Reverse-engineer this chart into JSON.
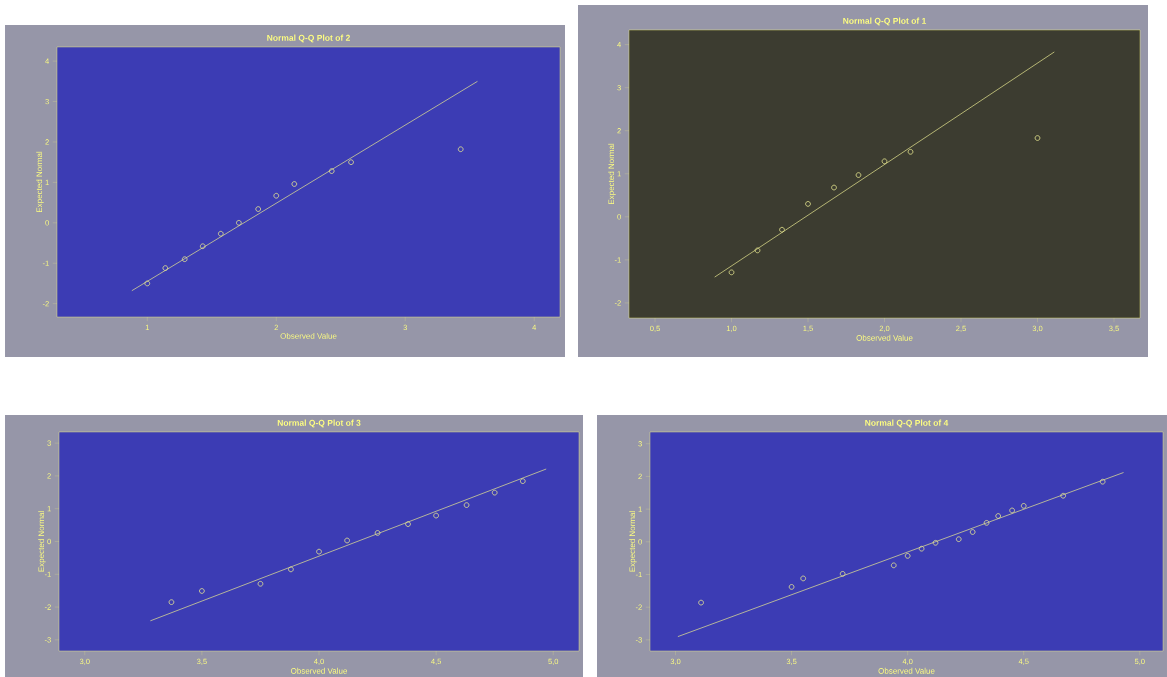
{
  "chart_data": [
    {
      "type": "scatter",
      "title": "Normal Q-Q Plot of 2",
      "xlabel": "Observed Value",
      "ylabel": "Expected Normal",
      "marker": "circle",
      "grid": false,
      "xlim": [
        0.3,
        4.2
      ],
      "ylim": [
        -2.33,
        4.35
      ],
      "xticks": [
        1,
        2,
        3,
        4
      ],
      "yticks": [
        -2,
        -1,
        0,
        1,
        2,
        3,
        4
      ],
      "series": [
        {
          "color": "#e8e890",
          "x": [
            1.0,
            1.14,
            1.29,
            1.43,
            1.57,
            1.71,
            1.86,
            2.0,
            2.14,
            2.43,
            2.58,
            3.43
          ],
          "values": [
            -1.5,
            -1.12,
            -0.9,
            -0.58,
            -0.27,
            0.0,
            0.34,
            0.67,
            0.96,
            1.28,
            1.5,
            1.82
          ]
        },
        {
          "type": "line",
          "color": "#e8e890",
          "marker": "none",
          "x": [
            0.88,
            3.56
          ],
          "values": [
            -1.68,
            3.5
          ]
        }
      ]
    },
    {
      "type": "scatter",
      "title": "Normal Q-Q Plot of 1",
      "xlabel": "Observed Value",
      "ylabel": "Expected Normal",
      "marker": "circle",
      "grid": false,
      "xlim": [
        0.33,
        3.67
      ],
      "ylim": [
        -2.35,
        4.34
      ],
      "xticks": [
        {
          "value": 0.5,
          "label": "0,5"
        },
        {
          "value": 1,
          "label": "1,0"
        },
        {
          "value": 1.5,
          "label": "1,5"
        },
        {
          "value": 2,
          "label": "2,0"
        },
        {
          "value": 2.5,
          "label": "2,5"
        },
        {
          "value": 3,
          "label": "3,0"
        },
        {
          "value": 3.5,
          "label": "3,5"
        }
      ],
      "yticks": [
        -2,
        -1,
        0,
        1,
        2,
        3,
        4
      ],
      "series": [
        {
          "color": "#e8e890",
          "x": [
            1.0,
            1.17,
            1.33,
            1.5,
            1.67,
            1.83,
            2.0,
            2.17,
            3.0
          ],
          "values": [
            -1.29,
            -0.78,
            -0.3,
            0.3,
            0.68,
            0.97,
            1.29,
            1.51,
            1.83
          ]
        },
        {
          "type": "line",
          "color": "#e8e890",
          "marker": "none",
          "x": [
            0.89,
            3.11
          ],
          "values": [
            -1.4,
            3.83
          ]
        }
      ]
    },
    {
      "type": "scatter",
      "title": "Normal Q-Q Plot of 3",
      "xlabel": "Observed Value",
      "ylabel": "Expected Normal",
      "marker": "circle",
      "grid": false,
      "xlim": [
        2.89,
        5.11
      ],
      "ylim": [
        -3.34,
        3.34
      ],
      "xticks": [
        {
          "value": 3,
          "label": "3,0"
        },
        {
          "value": 3.5,
          "label": "3,5"
        },
        {
          "value": 4,
          "label": "4,0"
        },
        {
          "value": 4.5,
          "label": "4,5"
        },
        {
          "value": 5,
          "label": "5,0"
        }
      ],
      "yticks": [
        -3,
        -2,
        -1,
        0,
        1,
        2,
        3
      ],
      "series": [
        {
          "color": "#e8e890",
          "x": [
            3.37,
            3.5,
            3.75,
            3.88,
            4.0,
            4.12,
            4.25,
            4.38,
            4.5,
            4.63,
            4.75,
            4.87
          ],
          "values": [
            -1.85,
            -1.51,
            -1.29,
            -0.85,
            -0.31,
            0.03,
            0.26,
            0.53,
            0.79,
            1.11,
            1.49,
            1.84
          ]
        },
        {
          "type": "line",
          "color": "#e8e890",
          "marker": "none",
          "x": [
            3.28,
            4.97
          ],
          "values": [
            -2.42,
            2.21
          ]
        }
      ]
    },
    {
      "type": "scatter",
      "title": "Normal Q-Q Plot of 4",
      "xlabel": "Observed Value",
      "ylabel": "Expected Normal",
      "marker": "circle",
      "grid": false,
      "xlim": [
        2.89,
        5.1
      ],
      "ylim": [
        -3.34,
        3.36
      ],
      "xticks": [
        {
          "value": 3,
          "label": "3,0"
        },
        {
          "value": 3.5,
          "label": "3,5"
        },
        {
          "value": 4,
          "label": "4,0"
        },
        {
          "value": 4.5,
          "label": "4,5"
        },
        {
          "value": 5,
          "label": "5,0"
        }
      ],
      "yticks": [
        -3,
        -2,
        -1,
        0,
        1,
        2,
        3
      ],
      "series": [
        {
          "color": "#e8e890",
          "x": [
            3.11,
            3.5,
            3.55,
            3.72,
            3.94,
            4.0,
            4.06,
            4.12,
            4.22,
            4.28,
            4.34,
            4.39,
            4.45,
            4.5,
            4.67,
            4.84
          ],
          "values": [
            -1.86,
            -1.38,
            -1.12,
            -0.98,
            -0.72,
            -0.43,
            -0.21,
            -0.03,
            0.08,
            0.3,
            0.58,
            0.79,
            0.96,
            1.1,
            1.41,
            1.84
          ]
        },
        {
          "type": "line",
          "color": "#e8e890",
          "marker": "none",
          "x": [
            3.01,
            4.93
          ],
          "values": [
            -2.9,
            2.12
          ]
        }
      ]
    }
  ]
}
